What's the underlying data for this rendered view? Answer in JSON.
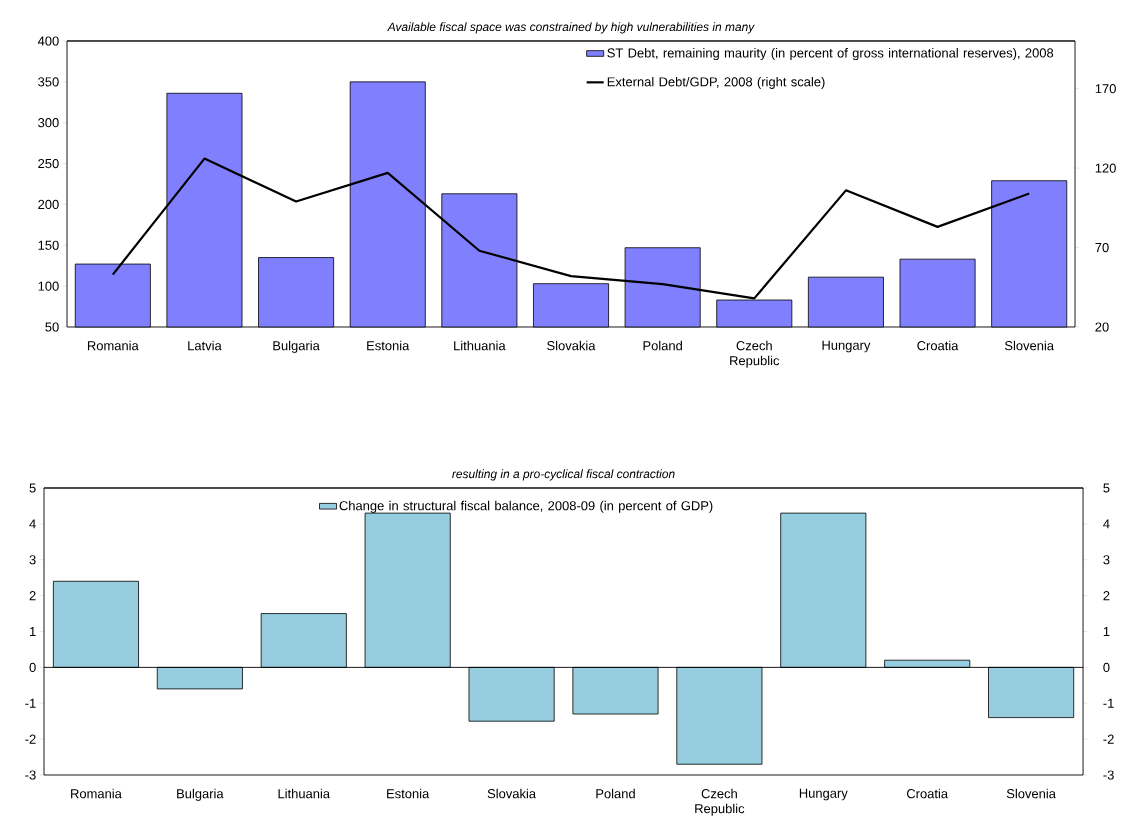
{
  "chart_data": [
    {
      "type": "bar",
      "title": "Available fiscal space was constrained by high vulnerabilities in many",
      "categories": [
        "Romania",
        "Latvia",
        "Bulgaria",
        "Estonia",
        "Lithuania",
        "Slovakia",
        "Poland",
        "Czech Republic",
        "Hungary",
        "Croatia",
        "Slovenia"
      ],
      "series": [
        {
          "name": "ST Debt, remaining maurity (in percent of gross international reserves), 2008",
          "type": "bar",
          "color": "#8080ff",
          "values": [
            127,
            336,
            135,
            350,
            213,
            103,
            147,
            83,
            111,
            133,
            229
          ]
        },
        {
          "name": "External Debt/GDP, 2008 (right scale)",
          "type": "line",
          "axis": "y2",
          "color": "#000000",
          "values": [
            53,
            126,
            99,
            117,
            68,
            52,
            47,
            38,
            106,
            83,
            104
          ]
        }
      ],
      "ylim": [
        50,
        400
      ],
      "yticks": [
        50,
        100,
        150,
        200,
        250,
        300,
        350,
        400
      ],
      "y2lim": [
        20,
        200
      ],
      "y2ticks": [
        20,
        70,
        120,
        170
      ],
      "legend": "top right"
    },
    {
      "type": "bar",
      "title": "resulting in a pro-cyclical fiscal contraction",
      "categories": [
        "Romania",
        "Bulgaria",
        "Lithuania",
        "Estonia",
        "Slovakia",
        "Poland",
        "Czech Republic",
        "Hungary",
        "Croatia",
        "Slovenia"
      ],
      "series": [
        {
          "name": "Change in structural fiscal balance, 2008-09 (in percent of GDP)",
          "color": "#96cddf",
          "values": [
            2.4,
            -0.6,
            1.5,
            4.3,
            -1.5,
            -1.3,
            -2.7,
            4.3,
            0.2,
            -1.4
          ]
        }
      ],
      "ylim": [
        -3,
        5
      ],
      "yticks": [
        -3,
        -2,
        -1,
        0,
        1,
        2,
        3,
        4,
        5
      ],
      "y2lim": [
        -3,
        5
      ],
      "y2ticks": [
        -3,
        -2,
        -1,
        0,
        1,
        2,
        3,
        4,
        5
      ],
      "legend": "top"
    }
  ]
}
